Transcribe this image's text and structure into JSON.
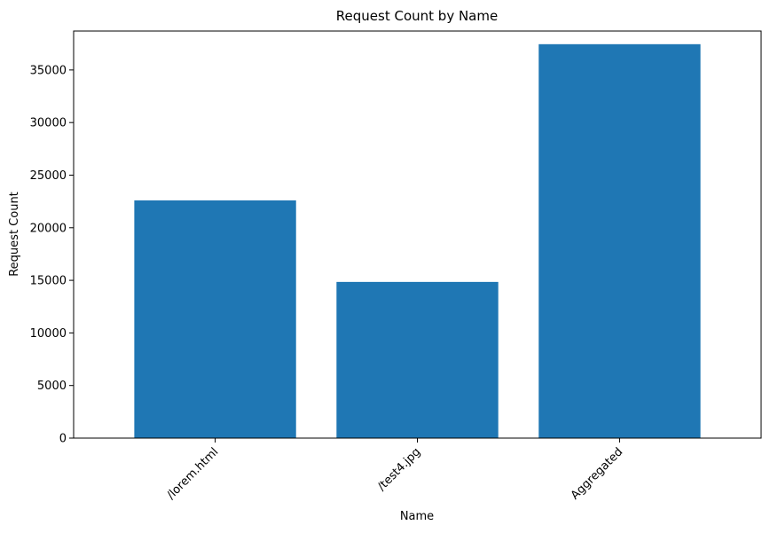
{
  "chart_data": {
    "type": "bar",
    "title": "Request Count by Name",
    "xlabel": "Name",
    "ylabel": "Request Count",
    "categories": [
      "/lorem.html",
      "/test4.jpg",
      "Aggregated"
    ],
    "values": [
      22600,
      14850,
      37450
    ],
    "ylim": [
      0,
      38700
    ],
    "yticks": [
      0,
      5000,
      10000,
      15000,
      20000,
      25000,
      30000,
      35000
    ],
    "grid": false,
    "bar_color": "#1f77b4",
    "tick_rotation_deg": 45
  }
}
